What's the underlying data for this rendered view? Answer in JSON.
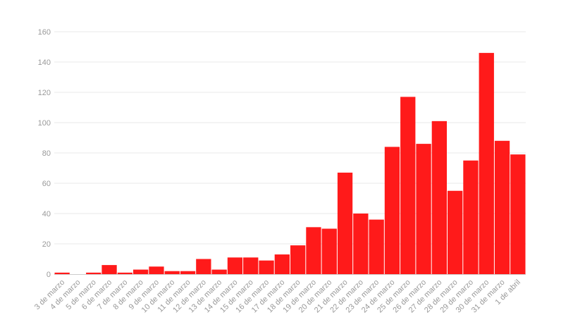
{
  "chart_data": {
    "type": "bar",
    "categories": [
      "3 de marzo",
      "4 de marzo",
      "5 de marzo",
      "6 de marzo",
      "7 de marzo",
      "8 de marzo",
      "9 de marzo",
      "10 de marzo",
      "11 de marzo",
      "12 de marzo",
      "13 de marzo",
      "14 de marzo",
      "15 de marzo",
      "16 de marzo",
      "17 de marzo",
      "18 de marzo",
      "19 de marzo",
      "20 de marzo",
      "21 de marzo",
      "22 de marzo",
      "23 de marzo",
      "24 de marzo",
      "25 de marzo",
      "26 de marzo",
      "27 de marzo",
      "28 de marzo",
      "29 de marzo",
      "30 de marzo",
      "31 de marzo",
      "1 de abril"
    ],
    "values": [
      1,
      0,
      1,
      6,
      1,
      3,
      5,
      2,
      2,
      10,
      3,
      11,
      11,
      9,
      13,
      19,
      31,
      30,
      67,
      40,
      36,
      84,
      117,
      86,
      101,
      55,
      75,
      146,
      88,
      79
    ],
    "yticks": [
      0,
      20,
      40,
      60,
      80,
      100,
      120,
      140,
      160
    ],
    "ylim": [
      0,
      160
    ],
    "bar_color": "#ff1a1a",
    "grid": true
  }
}
